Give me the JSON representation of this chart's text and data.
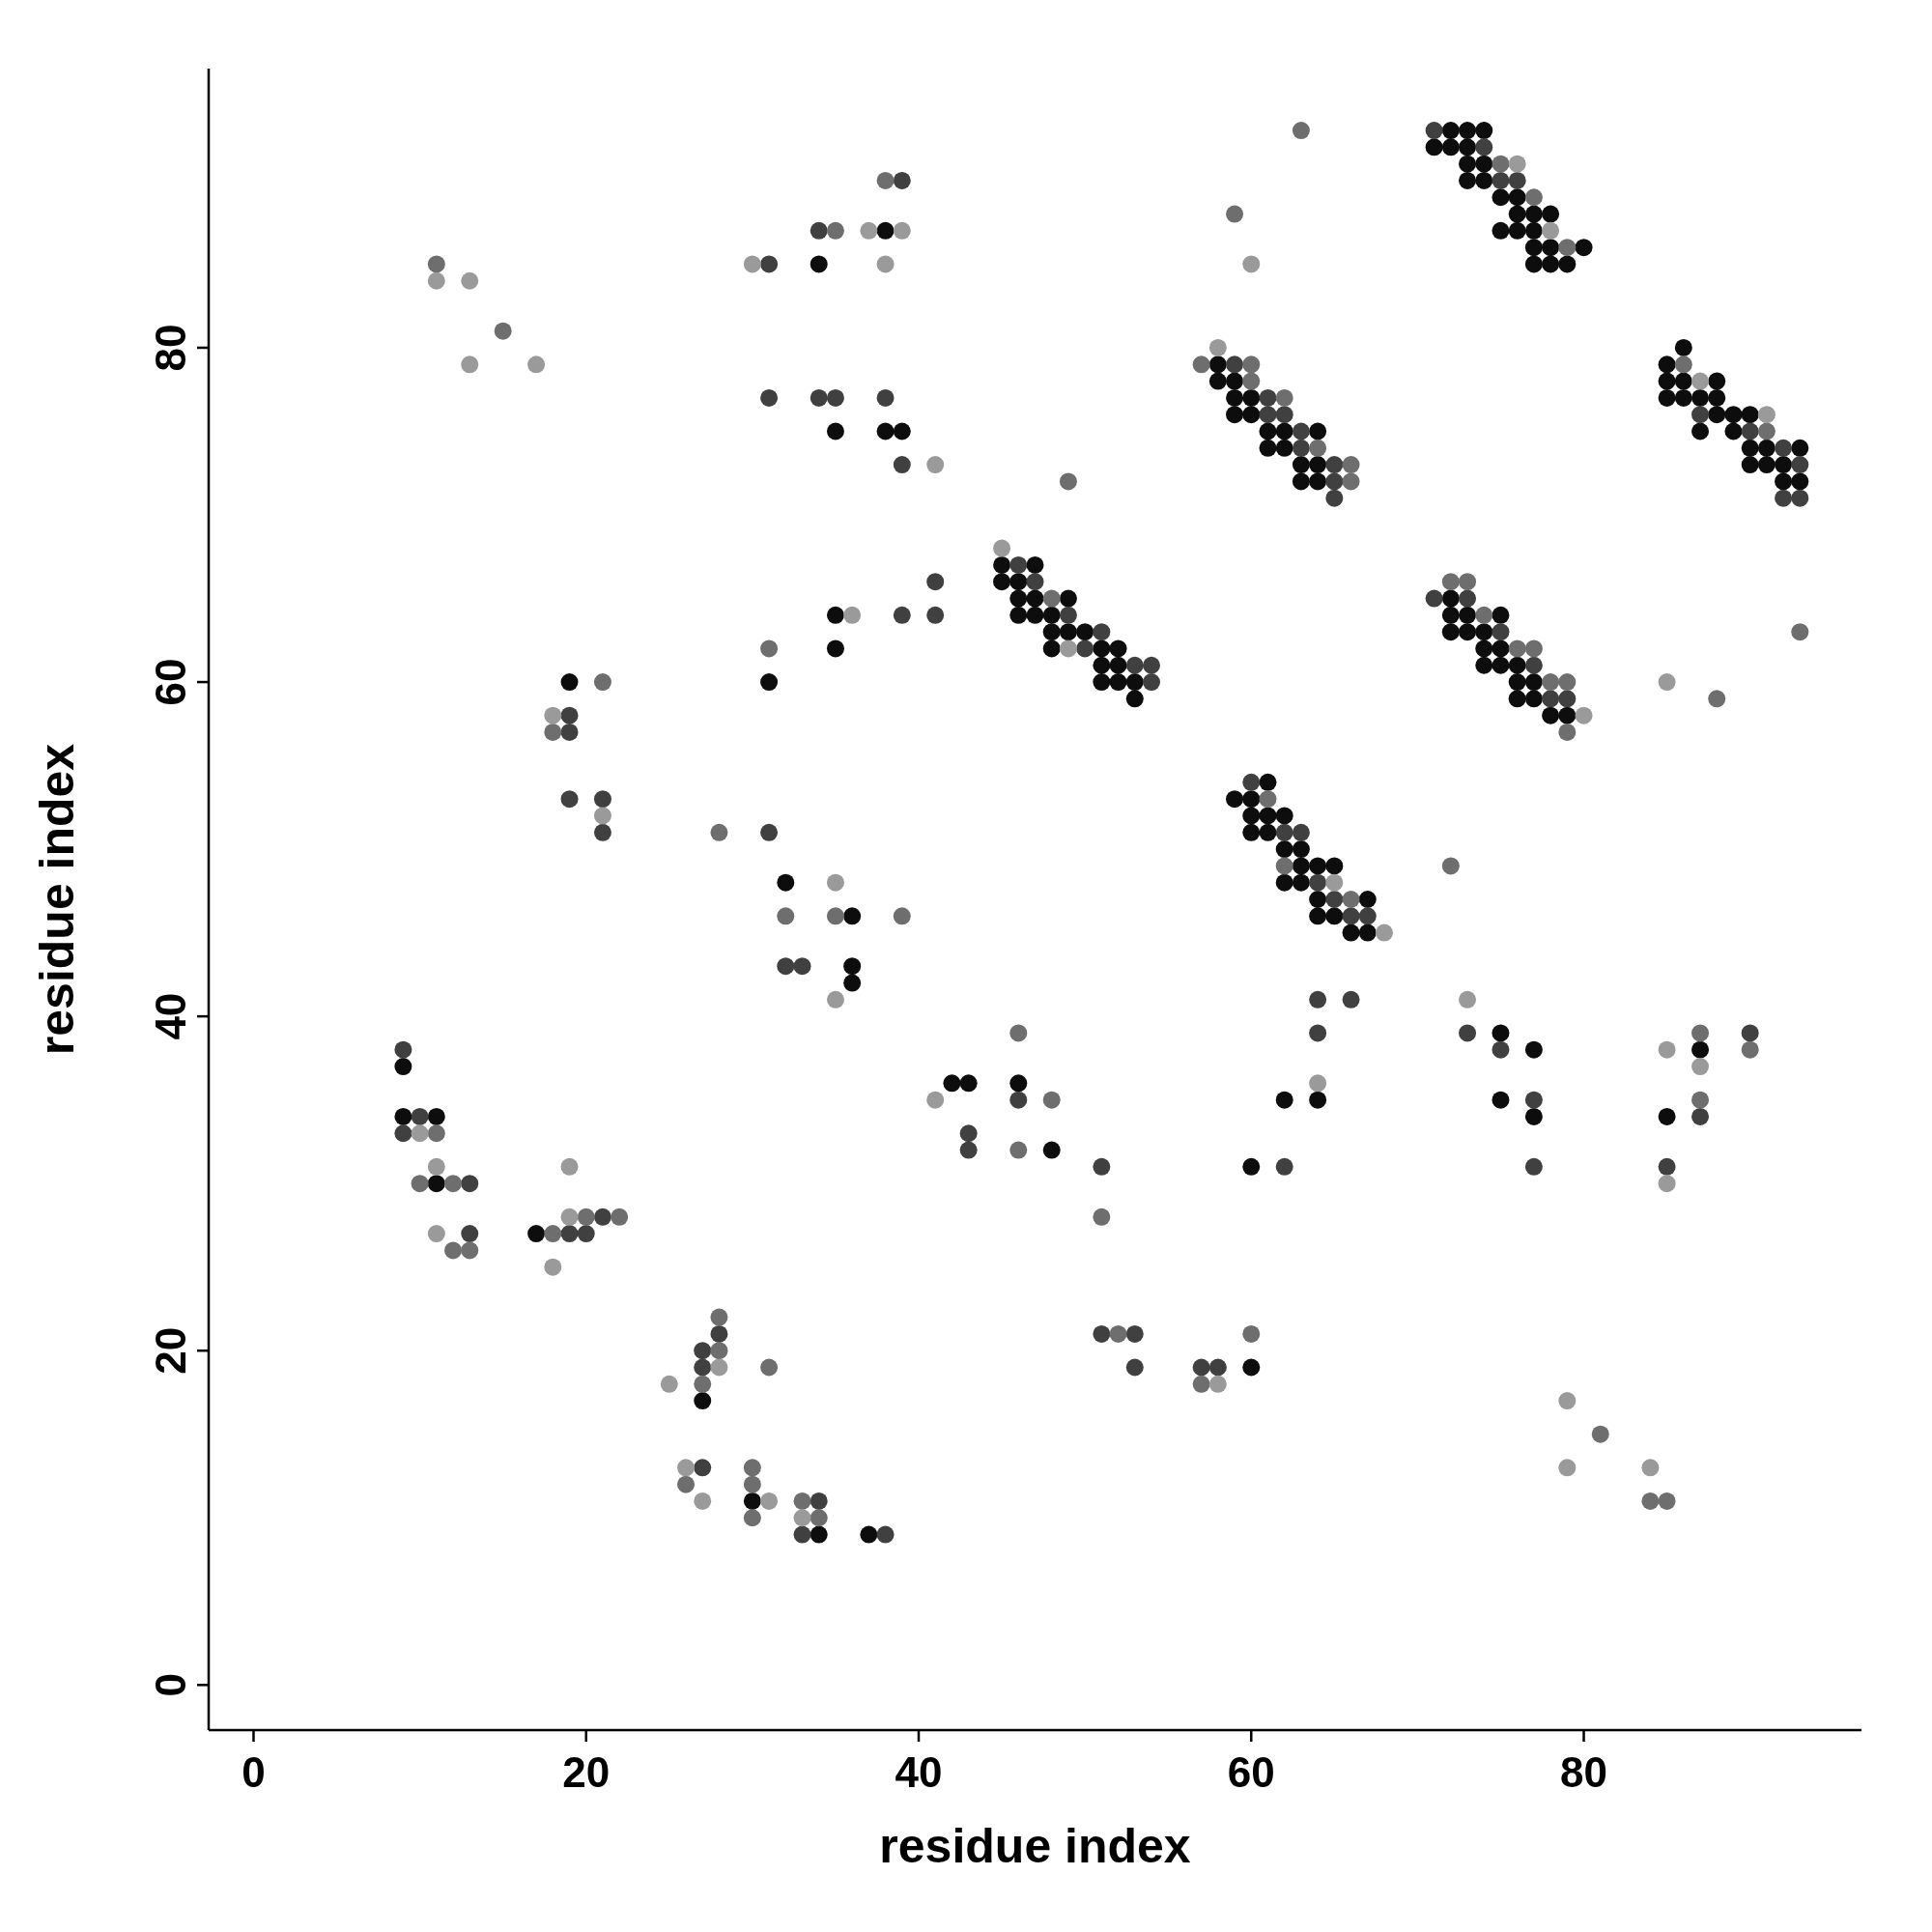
{
  "chart_data": {
    "type": "scatter",
    "xlabel": "residue index",
    "ylabel": "residue index",
    "xlim": [
      -2.7,
      96.7
    ],
    "ylim": [
      -2.7,
      96.7
    ],
    "xticks": [
      0,
      20,
      40,
      60,
      80
    ],
    "yticks": [
      0,
      20,
      40,
      60,
      80
    ],
    "marker": "circle",
    "series": [
      {
        "color": "#0d0d0d",
        "x": [
          34,
          38,
          35,
          38,
          39,
          72,
          73,
          74,
          71,
          72,
          73,
          73,
          74,
          73,
          74,
          75,
          76,
          76,
          77,
          78,
          75,
          76,
          77,
          77,
          78,
          80,
          77,
          78,
          79,
          58,
          58,
          59,
          59,
          60,
          59,
          60,
          61,
          62,
          64,
          61,
          62,
          63,
          64,
          63,
          64,
          86,
          85,
          85,
          86,
          88,
          85,
          86,
          87,
          88,
          88,
          89,
          90,
          87,
          89,
          90,
          91,
          93,
          90,
          91,
          92,
          92,
          93,
          45,
          47,
          45,
          46,
          46,
          47,
          49,
          46,
          47,
          48,
          48,
          49,
          50,
          48,
          51,
          52,
          51,
          52,
          51,
          52,
          53,
          53,
          72,
          72,
          73,
          75,
          72,
          73,
          74,
          74,
          75,
          74,
          75,
          76,
          76,
          77,
          76,
          77,
          78,
          79,
          61,
          59,
          60,
          60,
          61,
          62,
          60,
          61,
          62,
          63,
          63,
          64,
          65,
          62,
          63,
          64,
          67,
          64,
          65,
          66,
          67,
          19,
          31,
          35,
          35,
          32,
          36,
          36,
          36,
          9,
          9,
          11,
          11,
          17,
          27,
          30,
          34,
          37,
          42,
          43,
          46,
          48,
          60,
          60,
          62,
          64,
          75,
          77,
          75,
          77,
          85,
          87
        ],
        "values": [
          85,
          87,
          75,
          75,
          75,
          93,
          93,
          93,
          92,
          92,
          92,
          91,
          91,
          90,
          90,
          89,
          89,
          88,
          88,
          88,
          87,
          87,
          87,
          86,
          86,
          86,
          85,
          85,
          85,
          79,
          78,
          78,
          77,
          77,
          76,
          76,
          75,
          75,
          75,
          74,
          74,
          73,
          73,
          72,
          72,
          80,
          79,
          78,
          78,
          78,
          77,
          77,
          77,
          77,
          76,
          76,
          76,
          75,
          75,
          74,
          74,
          74,
          73,
          73,
          73,
          72,
          72,
          67,
          67,
          66,
          66,
          65,
          65,
          65,
          64,
          64,
          64,
          63,
          63,
          63,
          62,
          62,
          62,
          61,
          61,
          60,
          60,
          60,
          59,
          65,
          64,
          64,
          64,
          63,
          63,
          63,
          62,
          62,
          61,
          61,
          61,
          60,
          60,
          59,
          59,
          58,
          58,
          54,
          53,
          53,
          52,
          52,
          52,
          51,
          51,
          50,
          50,
          49,
          49,
          49,
          48,
          48,
          47,
          47,
          46,
          46,
          45,
          45,
          60,
          60,
          64,
          62,
          48,
          46,
          43,
          42,
          37,
          34,
          34,
          30,
          27,
          17,
          11,
          9,
          9,
          36,
          36,
          36,
          32,
          19,
          31,
          35,
          35,
          39,
          38,
          35,
          34,
          34,
          38
        ]
      },
      {
        "color": "#404040",
        "x": [
          31,
          34,
          39,
          31,
          34,
          35,
          38,
          39,
          71,
          74,
          75,
          76,
          59,
          61,
          61,
          62,
          63,
          63,
          65,
          65,
          65,
          87,
          90,
          92,
          93,
          92,
          93,
          46,
          47,
          49,
          51,
          50,
          53,
          54,
          54,
          71,
          73,
          75,
          77,
          78,
          79,
          60,
          62,
          63,
          64,
          65,
          66,
          67,
          19,
          19,
          19,
          21,
          21,
          39,
          41,
          41,
          31,
          32,
          33,
          9,
          10,
          9,
          13,
          13,
          19,
          20,
          21,
          28,
          27,
          27,
          27,
          34,
          33,
          38,
          43,
          43,
          46,
          51,
          51,
          53,
          53,
          57,
          58,
          62,
          64,
          64,
          66,
          73,
          75,
          77,
          77,
          85,
          87,
          90
        ],
        "values": [
          85,
          87,
          90,
          77,
          77,
          77,
          77,
          73,
          93,
          92,
          90,
          90,
          79,
          77,
          76,
          76,
          75,
          74,
          73,
          72,
          71,
          76,
          75,
          74,
          73,
          71,
          71,
          67,
          66,
          64,
          63,
          62,
          61,
          61,
          60,
          65,
          65,
          63,
          61,
          59,
          59,
          54,
          51,
          51,
          48,
          47,
          46,
          46,
          58,
          57,
          53,
          53,
          51,
          64,
          66,
          64,
          51,
          43,
          43,
          38,
          34,
          33,
          30,
          27,
          27,
          27,
          28,
          21,
          20,
          19,
          13,
          11,
          9,
          9,
          33,
          32,
          35,
          31,
          21,
          21,
          19,
          19,
          19,
          31,
          39,
          41,
          41,
          39,
          38,
          35,
          31,
          31,
          34,
          39
        ]
      },
      {
        "color": "#6e6e6e",
        "x": [
          11,
          15,
          35,
          38,
          49,
          63,
          59,
          75,
          77,
          79,
          57,
          60,
          60,
          62,
          64,
          66,
          66,
          86,
          91,
          93,
          88,
          48,
          72,
          73,
          74,
          76,
          77,
          78,
          79,
          79,
          61,
          62,
          66,
          72,
          18,
          21,
          31,
          28,
          32,
          35,
          39,
          11,
          10,
          12,
          12,
          13,
          18,
          20,
          22,
          28,
          28,
          27,
          31,
          26,
          30,
          30,
          30,
          33,
          34,
          46,
          48,
          46,
          51,
          52,
          57,
          60,
          87,
          87,
          90,
          81,
          84,
          85
        ],
        "values": [
          85,
          81,
          87,
          90,
          72,
          93,
          88,
          91,
          89,
          86,
          79,
          79,
          78,
          77,
          74,
          73,
          72,
          79,
          75,
          63,
          59,
          65,
          66,
          66,
          64,
          62,
          62,
          60,
          60,
          57,
          53,
          49,
          47,
          49,
          57,
          60,
          62,
          51,
          46,
          46,
          46,
          33,
          30,
          30,
          26,
          26,
          27,
          28,
          28,
          22,
          20,
          18,
          19,
          12,
          13,
          12,
          10,
          11,
          10,
          39,
          35,
          32,
          28,
          21,
          18,
          21,
          39,
          35,
          38,
          15,
          11,
          11
        ]
      },
      {
        "color": "#9a9a9a",
        "x": [
          11,
          13,
          13,
          17,
          30,
          37,
          39,
          38,
          41,
          60,
          76,
          78,
          58,
          87,
          91,
          85,
          45,
          49,
          80,
          65,
          68,
          18,
          21,
          36,
          35,
          35,
          10,
          11,
          11,
          19,
          19,
          18,
          28,
          25,
          26,
          27,
          31,
          33,
          41,
          58,
          64,
          73,
          85,
          85,
          87,
          79,
          79,
          84
        ],
        "values": [
          84,
          84,
          79,
          79,
          85,
          87,
          87,
          85,
          73,
          85,
          91,
          87,
          80,
          78,
          76,
          60,
          68,
          62,
          58,
          48,
          45,
          58,
          52,
          64,
          48,
          41,
          33,
          31,
          27,
          31,
          28,
          25,
          19,
          18,
          13,
          11,
          11,
          10,
          35,
          18,
          36,
          41,
          38,
          30,
          37,
          17,
          13,
          13
        ]
      }
    ]
  }
}
